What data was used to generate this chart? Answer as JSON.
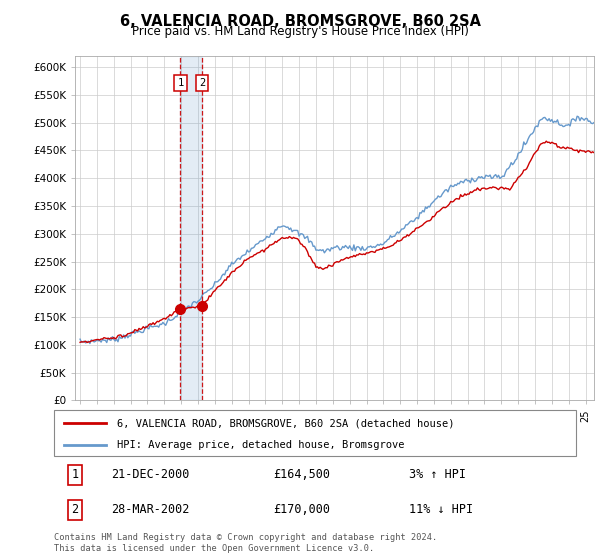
{
  "title": "6, VALENCIA ROAD, BROMSGROVE, B60 2SA",
  "subtitle": "Price paid vs. HM Land Registry's House Price Index (HPI)",
  "legend_line1": "6, VALENCIA ROAD, BROMSGROVE, B60 2SA (detached house)",
  "legend_line2": "HPI: Average price, detached house, Bromsgrove",
  "annotation1_date": "21-DEC-2000",
  "annotation1_price": "£164,500",
  "annotation1_hpi": "3% ↑ HPI",
  "annotation2_date": "28-MAR-2002",
  "annotation2_price": "£170,000",
  "annotation2_hpi": "11% ↓ HPI",
  "footnote": "Contains HM Land Registry data © Crown copyright and database right 2024.\nThis data is licensed under the Open Government Licence v3.0.",
  "sale1_x": 2000.96,
  "sale1_y": 164500,
  "sale2_x": 2002.24,
  "sale2_y": 170000,
  "vline1_x": 2000.96,
  "vline2_x": 2002.24,
  "red_color": "#cc0000",
  "blue_color": "#6699cc",
  "vline_color": "#cc0000",
  "grid_color": "#cccccc",
  "ylim": [
    0,
    620000
  ],
  "xlim_min": 1994.7,
  "xlim_max": 2025.5
}
